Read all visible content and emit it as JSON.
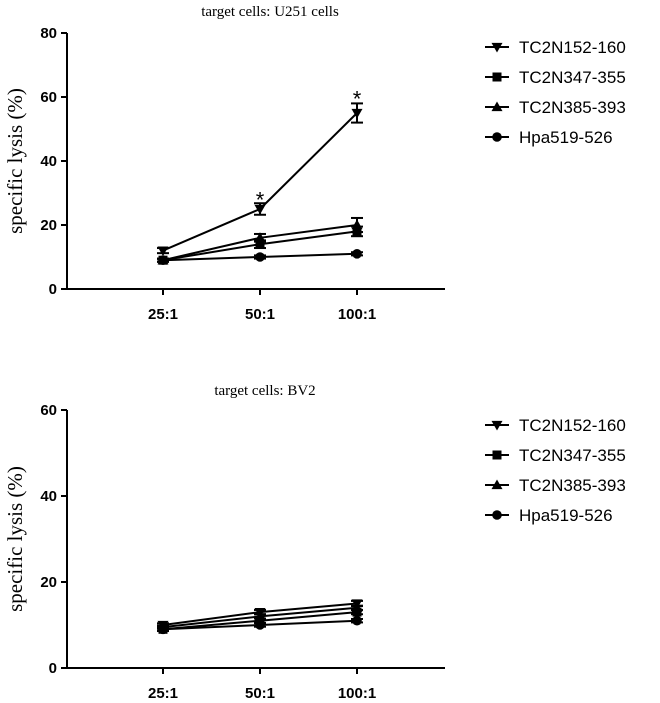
{
  "chart_data": [
    {
      "type": "line",
      "title": "target cells: U251 cells",
      "xlabel": "",
      "ylabel": "specific lysis (%)",
      "ylim": [
        0,
        80
      ],
      "yticks": [
        "0",
        "20",
        "40",
        "60",
        "80"
      ],
      "categories": [
        "25:1",
        "50:1",
        "100:1"
      ],
      "series": [
        {
          "name": "TC2N152-160",
          "marker": "triangle-down",
          "values": [
            12,
            25,
            55
          ],
          "errors": [
            0.8,
            1.8,
            3
          ]
        },
        {
          "name": "TC2N347-355",
          "marker": "square",
          "values": [
            9,
            14,
            18
          ],
          "errors": [
            0.5,
            1.2,
            1.5
          ]
        },
        {
          "name": "TC2N385-393",
          "marker": "triangle-up",
          "values": [
            9,
            16,
            20
          ],
          "errors": [
            0.5,
            1.2,
            2.2
          ]
        },
        {
          "name": "Hpa519-526",
          "marker": "circle",
          "values": [
            9,
            10,
            11
          ],
          "errors": [
            0.4,
            0.5,
            0.5
          ]
        }
      ],
      "annotations": [
        {
          "text": "*",
          "category": "50:1",
          "value": 28
        },
        {
          "text": "*",
          "category": "100:1",
          "value": 59.5
        }
      ],
      "legend": "right"
    },
    {
      "type": "line",
      "title": "target cells: BV2",
      "xlabel": "",
      "ylabel": "specific lysis (%)",
      "ylim": [
        0,
        60
      ],
      "yticks": [
        "0",
        "20",
        "40",
        "60"
      ],
      "categories": [
        "25:1",
        "50:1",
        "100:1"
      ],
      "series": [
        {
          "name": "TC2N152-160",
          "marker": "triangle-down",
          "values": [
            10,
            13,
            15
          ],
          "errors": [
            0.4,
            0.5,
            0.6
          ]
        },
        {
          "name": "TC2N347-355",
          "marker": "square",
          "values": [
            9,
            11,
            13
          ],
          "errors": [
            0.4,
            0.5,
            0.5
          ]
        },
        {
          "name": "TC2N385-393",
          "marker": "triangle-up",
          "values": [
            9.5,
            12,
            14
          ],
          "errors": [
            0.4,
            0.5,
            0.5
          ]
        },
        {
          "name": "Hpa519-526",
          "marker": "circle",
          "values": [
            9,
            10,
            11
          ],
          "errors": [
            0.4,
            0.4,
            0.4
          ]
        }
      ],
      "annotations": [],
      "legend": "right"
    }
  ]
}
